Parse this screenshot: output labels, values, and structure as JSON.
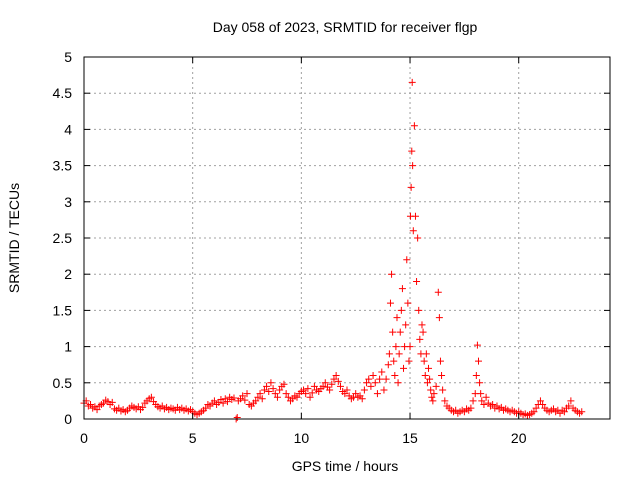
{
  "chart_data": {
    "type": "scatter",
    "title": "Day 058 of 2023, SRMTID for receiver flgp",
    "xlabel": "GPS time / hours",
    "ylabel": "SRMTID / TECUs",
    "xlim": [
      0,
      24.2
    ],
    "ylim": [
      0,
      5
    ],
    "xticks": [
      0,
      5,
      10,
      15,
      20
    ],
    "xtick_labels": [
      "0",
      "5",
      "10",
      "15",
      "20"
    ],
    "yticks": [
      0,
      0.5,
      1,
      1.5,
      2,
      2.5,
      3,
      3.5,
      4,
      4.5,
      5
    ],
    "ytick_labels": [
      "0",
      "0.5",
      "1",
      "1.5",
      "2",
      "2.5",
      "3",
      "3.5",
      "4",
      "4.5",
      "5"
    ],
    "grid": true,
    "marker": "+",
    "marker_color": "#ff0000",
    "series": [
      {
        "name": "SRMTID",
        "points": [
          [
            0.0,
            0.22
          ],
          [
            0.1,
            0.25
          ],
          [
            0.2,
            0.18
          ],
          [
            0.3,
            0.2
          ],
          [
            0.4,
            0.15
          ],
          [
            0.5,
            0.17
          ],
          [
            0.6,
            0.13
          ],
          [
            0.7,
            0.18
          ],
          [
            0.8,
            0.2
          ],
          [
            0.9,
            0.22
          ],
          [
            1.0,
            0.26
          ],
          [
            1.1,
            0.24
          ],
          [
            1.2,
            0.2
          ],
          [
            1.3,
            0.23
          ],
          [
            1.4,
            0.14
          ],
          [
            1.5,
            0.12
          ],
          [
            1.6,
            0.15
          ],
          [
            1.7,
            0.11
          ],
          [
            1.8,
            0.13
          ],
          [
            1.9,
            0.1
          ],
          [
            2.0,
            0.12
          ],
          [
            2.1,
            0.15
          ],
          [
            2.2,
            0.18
          ],
          [
            2.3,
            0.16
          ],
          [
            2.4,
            0.14
          ],
          [
            2.5,
            0.17
          ],
          [
            2.6,
            0.13
          ],
          [
            2.7,
            0.16
          ],
          [
            2.8,
            0.22
          ],
          [
            2.9,
            0.25
          ],
          [
            3.0,
            0.28
          ],
          [
            3.1,
            0.3
          ],
          [
            3.2,
            0.24
          ],
          [
            3.3,
            0.2
          ],
          [
            3.4,
            0.17
          ],
          [
            3.5,
            0.15
          ],
          [
            3.6,
            0.18
          ],
          [
            3.7,
            0.14
          ],
          [
            3.8,
            0.16
          ],
          [
            3.9,
            0.13
          ],
          [
            4.0,
            0.15
          ],
          [
            4.1,
            0.14
          ],
          [
            4.2,
            0.12
          ],
          [
            4.3,
            0.16
          ],
          [
            4.4,
            0.13
          ],
          [
            4.5,
            0.15
          ],
          [
            4.6,
            0.12
          ],
          [
            4.7,
            0.14
          ],
          [
            4.8,
            0.11
          ],
          [
            4.9,
            0.13
          ],
          [
            5.0,
            0.1
          ],
          [
            5.1,
            0.08
          ],
          [
            5.2,
            0.06
          ],
          [
            5.3,
            0.08
          ],
          [
            5.4,
            0.1
          ],
          [
            5.5,
            0.12
          ],
          [
            5.6,
            0.15
          ],
          [
            5.7,
            0.2
          ],
          [
            5.8,
            0.18
          ],
          [
            5.9,
            0.22
          ],
          [
            6.0,
            0.25
          ],
          [
            6.1,
            0.2
          ],
          [
            6.2,
            0.23
          ],
          [
            6.3,
            0.27
          ],
          [
            6.4,
            0.22
          ],
          [
            6.5,
            0.28
          ],
          [
            6.6,
            0.24
          ],
          [
            6.7,
            0.3
          ],
          [
            6.8,
            0.27
          ],
          [
            6.9,
            0.29
          ],
          [
            7.0,
            0.0
          ],
          [
            7.05,
            0.02
          ],
          [
            7.1,
            0.25
          ],
          [
            7.2,
            0.28
          ],
          [
            7.3,
            0.32
          ],
          [
            7.4,
            0.26
          ],
          [
            7.5,
            0.35
          ],
          [
            7.6,
            0.2
          ],
          [
            7.7,
            0.18
          ],
          [
            7.8,
            0.22
          ],
          [
            7.9,
            0.25
          ],
          [
            8.0,
            0.3
          ],
          [
            8.1,
            0.35
          ],
          [
            8.2,
            0.28
          ],
          [
            8.3,
            0.4
          ],
          [
            8.4,
            0.45
          ],
          [
            8.5,
            0.38
          ],
          [
            8.6,
            0.5
          ],
          [
            8.7,
            0.42
          ],
          [
            8.8,
            0.35
          ],
          [
            8.9,
            0.3
          ],
          [
            9.0,
            0.4
          ],
          [
            9.1,
            0.45
          ],
          [
            9.2,
            0.48
          ],
          [
            9.3,
            0.35
          ],
          [
            9.4,
            0.3
          ],
          [
            9.5,
            0.25
          ],
          [
            9.6,
            0.28
          ],
          [
            9.7,
            0.32
          ],
          [
            9.8,
            0.3
          ],
          [
            9.9,
            0.35
          ],
          [
            10.0,
            0.38
          ],
          [
            10.1,
            0.4
          ],
          [
            10.2,
            0.35
          ],
          [
            10.3,
            0.42
          ],
          [
            10.4,
            0.3
          ],
          [
            10.5,
            0.36
          ],
          [
            10.6,
            0.45
          ],
          [
            10.7,
            0.4
          ],
          [
            10.8,
            0.38
          ],
          [
            10.9,
            0.42
          ],
          [
            11.0,
            0.45
          ],
          [
            11.1,
            0.5
          ],
          [
            11.2,
            0.44
          ],
          [
            11.3,
            0.4
          ],
          [
            11.4,
            0.48
          ],
          [
            11.5,
            0.55
          ],
          [
            11.6,
            0.6
          ],
          [
            11.7,
            0.52
          ],
          [
            11.8,
            0.45
          ],
          [
            11.9,
            0.38
          ],
          [
            12.0,
            0.35
          ],
          [
            12.1,
            0.4
          ],
          [
            12.2,
            0.32
          ],
          [
            12.3,
            0.28
          ],
          [
            12.4,
            0.3
          ],
          [
            12.5,
            0.35
          ],
          [
            12.6,
            0.3
          ],
          [
            12.7,
            0.32
          ],
          [
            12.8,
            0.28
          ],
          [
            12.9,
            0.4
          ],
          [
            13.0,
            0.5
          ],
          [
            13.1,
            0.55
          ],
          [
            13.2,
            0.45
          ],
          [
            13.3,
            0.6
          ],
          [
            13.4,
            0.5
          ],
          [
            13.5,
            0.35
          ],
          [
            13.6,
            0.55
          ],
          [
            13.7,
            0.65
          ],
          [
            13.8,
            0.4
          ],
          [
            13.9,
            0.55
          ],
          [
            14.0,
            0.75
          ],
          [
            14.05,
            0.9
          ],
          [
            14.1,
            1.6
          ],
          [
            14.15,
            2.0
          ],
          [
            14.2,
            1.2
          ],
          [
            14.25,
            0.8
          ],
          [
            14.3,
            0.6
          ],
          [
            14.35,
            1.0
          ],
          [
            14.4,
            1.4
          ],
          [
            14.45,
            0.5
          ],
          [
            14.5,
            0.9
          ],
          [
            14.55,
            1.2
          ],
          [
            14.6,
            1.5
          ],
          [
            14.65,
            1.8
          ],
          [
            14.7,
            0.7
          ],
          [
            14.75,
            1.0
          ],
          [
            14.8,
            1.3
          ],
          [
            14.85,
            2.2
          ],
          [
            14.9,
            1.6
          ],
          [
            14.95,
            0.8
          ],
          [
            15.0,
            1.0
          ],
          [
            15.02,
            2.8
          ],
          [
            15.05,
            3.2
          ],
          [
            15.08,
            3.7
          ],
          [
            15.1,
            4.65
          ],
          [
            15.12,
            3.5
          ],
          [
            15.15,
            2.6
          ],
          [
            15.2,
            4.05
          ],
          [
            15.25,
            2.8
          ],
          [
            15.3,
            1.9
          ],
          [
            15.35,
            2.5
          ],
          [
            15.4,
            1.5
          ],
          [
            15.45,
            1.1
          ],
          [
            15.5,
            0.9
          ],
          [
            15.55,
            1.3
          ],
          [
            15.6,
            1.2
          ],
          [
            15.65,
            0.8
          ],
          [
            15.7,
            0.6
          ],
          [
            15.75,
            0.9
          ],
          [
            15.8,
            0.5
          ],
          [
            15.85,
            0.7
          ],
          [
            15.9,
            0.55
          ],
          [
            15.95,
            0.4
          ],
          [
            16.0,
            0.3
          ],
          [
            16.05,
            0.25
          ],
          [
            16.1,
            0.35
          ],
          [
            16.2,
            0.45
          ],
          [
            16.3,
            1.75
          ],
          [
            16.35,
            1.4
          ],
          [
            16.4,
            0.8
          ],
          [
            16.45,
            0.6
          ],
          [
            16.5,
            0.4
          ],
          [
            16.6,
            0.25
          ],
          [
            16.7,
            0.18
          ],
          [
            16.8,
            0.15
          ],
          [
            16.9,
            0.12
          ],
          [
            17.0,
            0.1
          ],
          [
            17.1,
            0.12
          ],
          [
            17.2,
            0.08
          ],
          [
            17.3,
            0.1
          ],
          [
            17.4,
            0.12
          ],
          [
            17.5,
            0.1
          ],
          [
            17.6,
            0.14
          ],
          [
            17.7,
            0.12
          ],
          [
            17.8,
            0.15
          ],
          [
            17.9,
            0.25
          ],
          [
            18.0,
            0.35
          ],
          [
            18.05,
            0.6
          ],
          [
            18.1,
            1.02
          ],
          [
            18.15,
            0.8
          ],
          [
            18.2,
            0.5
          ],
          [
            18.25,
            0.35
          ],
          [
            18.3,
            0.25
          ],
          [
            18.4,
            0.2
          ],
          [
            18.5,
            0.3
          ],
          [
            18.6,
            0.22
          ],
          [
            18.7,
            0.18
          ],
          [
            18.8,
            0.2
          ],
          [
            18.9,
            0.15
          ],
          [
            19.0,
            0.18
          ],
          [
            19.1,
            0.14
          ],
          [
            19.2,
            0.16
          ],
          [
            19.3,
            0.12
          ],
          [
            19.4,
            0.14
          ],
          [
            19.5,
            0.12
          ],
          [
            19.6,
            0.1
          ],
          [
            19.7,
            0.12
          ],
          [
            19.8,
            0.1
          ],
          [
            19.9,
            0.08
          ],
          [
            20.0,
            0.1
          ],
          [
            20.1,
            0.08
          ],
          [
            20.2,
            0.06
          ],
          [
            20.3,
            0.07
          ],
          [
            20.4,
            0.05
          ],
          [
            20.5,
            0.06
          ],
          [
            20.6,
            0.08
          ],
          [
            20.7,
            0.1
          ],
          [
            20.8,
            0.15
          ],
          [
            20.9,
            0.2
          ],
          [
            21.0,
            0.25
          ],
          [
            21.1,
            0.2
          ],
          [
            21.2,
            0.15
          ],
          [
            21.3,
            0.12
          ],
          [
            21.4,
            0.1
          ],
          [
            21.5,
            0.12
          ],
          [
            21.6,
            0.14
          ],
          [
            21.7,
            0.1
          ],
          [
            21.8,
            0.12
          ],
          [
            21.9,
            0.08
          ],
          [
            22.0,
            0.12
          ],
          [
            22.1,
            0.1
          ],
          [
            22.2,
            0.15
          ],
          [
            22.3,
            0.18
          ],
          [
            22.4,
            0.25
          ],
          [
            22.5,
            0.15
          ],
          [
            22.6,
            0.12
          ],
          [
            22.7,
            0.1
          ],
          [
            22.8,
            0.08
          ],
          [
            22.9,
            0.1
          ]
        ]
      }
    ]
  }
}
